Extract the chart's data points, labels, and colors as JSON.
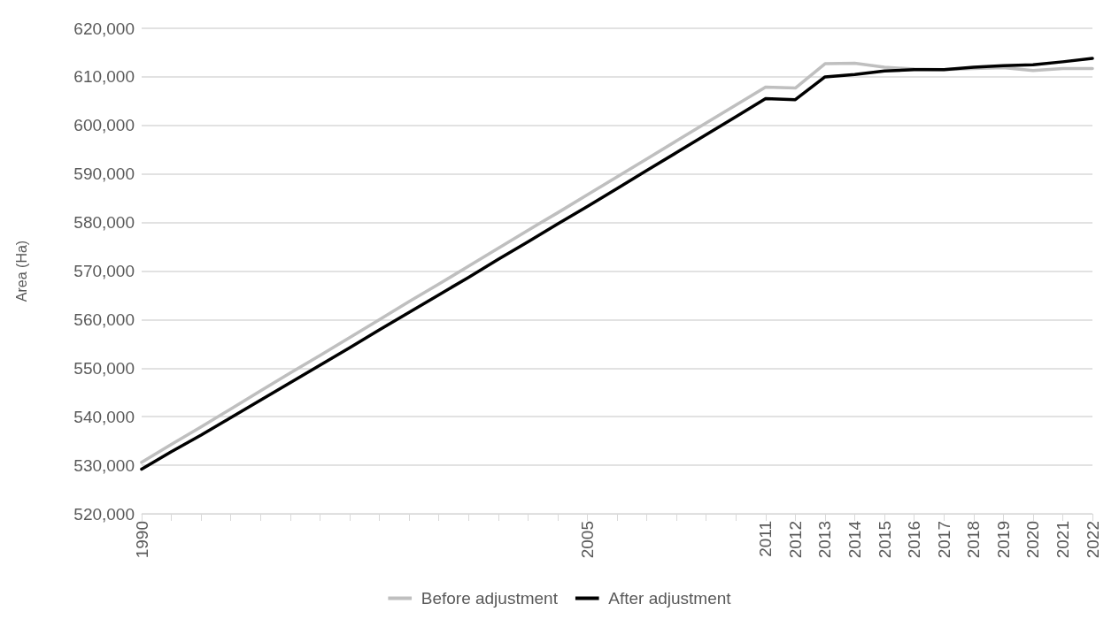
{
  "chart_data": {
    "type": "line",
    "ylabel": "Area (Ha)",
    "categories": [
      "1990",
      null,
      null,
      null,
      null,
      null,
      null,
      null,
      null,
      null,
      null,
      null,
      null,
      null,
      null,
      "2005",
      null,
      null,
      null,
      null,
      null,
      "2011",
      "2012",
      "2013",
      "2014",
      "2015",
      "2016",
      "2017",
      "2018",
      "2019",
      "2020",
      "2021",
      "2022"
    ],
    "series": [
      {
        "name": "Before adjustment",
        "color": "#bfbfbf",
        "values": [
          530600,
          534300,
          537900,
          541600,
          545300,
          549000,
          552600,
          556300,
          560000,
          563700,
          567300,
          571000,
          574700,
          578400,
          582000,
          585700,
          589400,
          593100,
          596800,
          600500,
          604200,
          607900,
          607700,
          612700,
          612800,
          612000,
          611600,
          611500,
          611700,
          611900,
          611300,
          611700,
          611700
        ]
      },
      {
        "name": "After adjustment",
        "color": "#000000",
        "values": [
          529200,
          532800,
          536200,
          539800,
          543400,
          547000,
          550600,
          554200,
          557900,
          561500,
          565100,
          568700,
          572400,
          576000,
          579700,
          583300,
          587000,
          590700,
          594400,
          598100,
          601800,
          605500,
          605300,
          610000,
          610500,
          611200,
          611500,
          611500,
          612000,
          612300,
          612500,
          613100,
          613800
        ]
      }
    ],
    "ylim": [
      520000,
      620000
    ],
    "yticks": [
      {
        "value": 520000,
        "label": "520,000"
      },
      {
        "value": 530000,
        "label": "530,000"
      },
      {
        "value": 540000,
        "label": "540,000"
      },
      {
        "value": 550000,
        "label": "550,000"
      },
      {
        "value": 560000,
        "label": "560,000"
      },
      {
        "value": 570000,
        "label": "570,000"
      },
      {
        "value": 580000,
        "label": "580,000"
      },
      {
        "value": 590000,
        "label": "590,000"
      },
      {
        "value": 600000,
        "label": "600,000"
      },
      {
        "value": 610000,
        "label": "610,000"
      },
      {
        "value": 620000,
        "label": "620,000"
      }
    ],
    "grid": "y",
    "legend": "bottom",
    "marker": "none",
    "line_style": "solid"
  }
}
